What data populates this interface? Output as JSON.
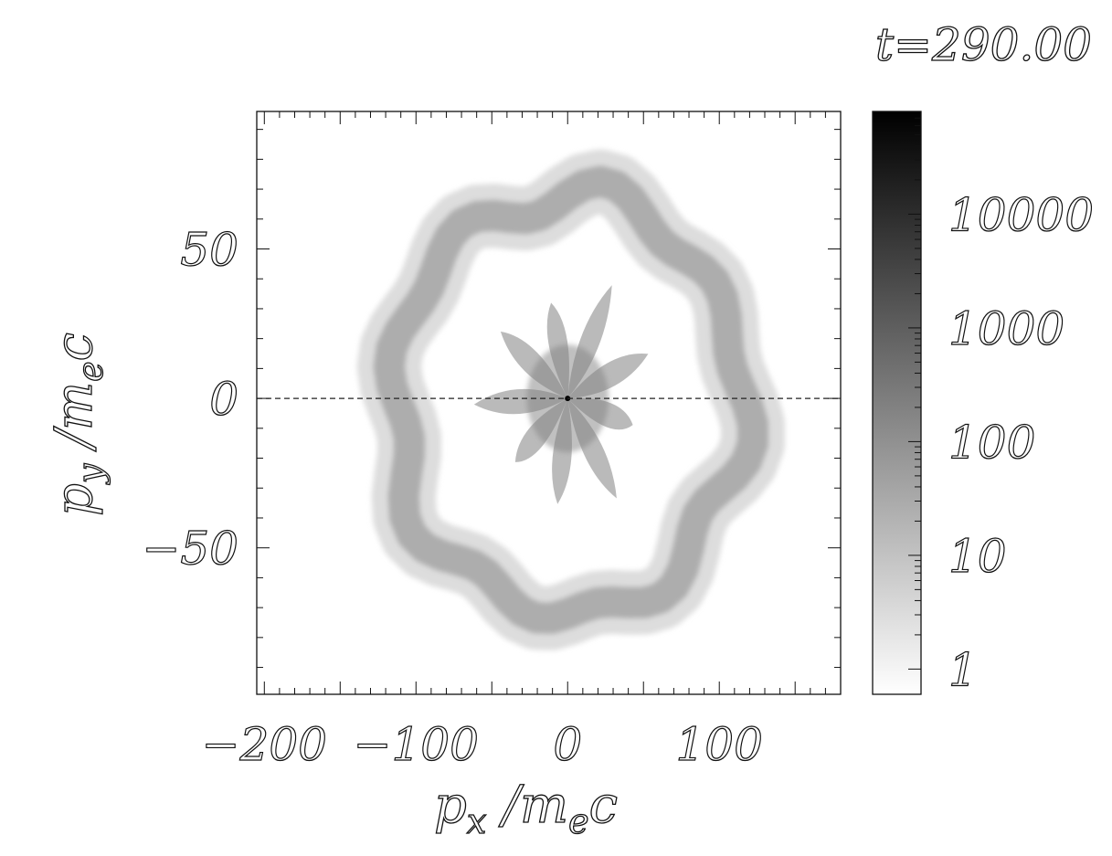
{
  "chart_data": {
    "type": "heatmap",
    "title": "t=290.00",
    "xlabel": {
      "base": "p",
      "sub": "x",
      "unit_pre": " /m",
      "unit_sub": "e",
      "unit_post": "c"
    },
    "ylabel": {
      "base": "p",
      "sub": "y",
      "unit_pre": " /m",
      "unit_sub": "e",
      "unit_post": "c"
    },
    "xlim": [
      -205,
      180
    ],
    "ylim": [
      -99,
      96
    ],
    "x_ticks": [
      {
        "value": -200,
        "label": "−200"
      },
      {
        "value": -100,
        "label": "−100"
      },
      {
        "value": 0,
        "label": "0"
      },
      {
        "value": 100,
        "label": "100"
      }
    ],
    "y_ticks": [
      {
        "value": -50,
        "label": "−50"
      },
      {
        "value": 0,
        "label": "0"
      },
      {
        "value": 50,
        "label": "50"
      }
    ],
    "reference_line": {
      "y": 0,
      "style": "dashed"
    },
    "colorbar": {
      "scale": "log",
      "range": [
        0.6,
        80000
      ],
      "colormap": "white-to-black grayscale",
      "ticks": [
        {
          "value": 1,
          "label": "1"
        },
        {
          "value": 10,
          "label": "10"
        },
        {
          "value": 100,
          "label": "100"
        },
        {
          "value": 1000,
          "label": "1000"
        },
        {
          "value": 10000,
          "label": "10000"
        }
      ]
    },
    "features": [
      {
        "name": "outer-ring",
        "description_shape": "lobed ring",
        "radius_x": 115,
        "radius_y": 70,
        "center": [
          0,
          -2
        ],
        "density": 40
      },
      {
        "name": "inner-core",
        "description_shape": "star-shaped petals",
        "radius_x": 60,
        "radius_y": 40,
        "center": [
          0,
          0
        ],
        "density": 200
      },
      {
        "name": "center-peak",
        "center": [
          0,
          0
        ],
        "density": 80000
      }
    ],
    "grid": false
  },
  "colors": {
    "background": "#ffffff",
    "axis": "#111111",
    "cmap_low": "#ffffff",
    "cmap_high": "#000000"
  }
}
